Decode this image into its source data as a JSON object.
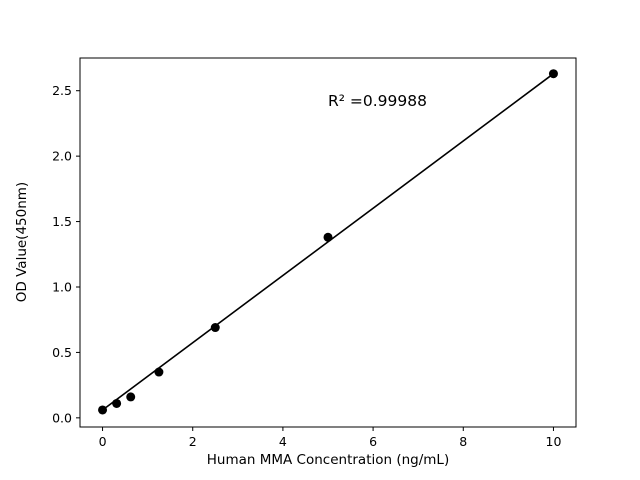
{
  "chart_data": {
    "type": "scatter",
    "title": "",
    "xlabel": "Human MMA Concentration (ng/mL)",
    "ylabel": "OD Value(450nm)",
    "annotation": "R² =0.99988",
    "x": [
      0,
      0.3125,
      0.625,
      1.25,
      2.5,
      5,
      10
    ],
    "y": [
      0.06,
      0.11,
      0.16,
      0.35,
      0.69,
      1.38,
      2.63
    ],
    "fit_line": {
      "type": "linear",
      "x": [
        0,
        10
      ],
      "y": [
        0.06,
        2.63
      ]
    },
    "xlim": [
      -0.5,
      10.5
    ],
    "ylim": [
      -0.07,
      2.75
    ],
    "xticks": [
      0,
      2,
      4,
      6,
      8,
      10
    ],
    "yticks": [
      0.0,
      0.5,
      1.0,
      1.5,
      2.0,
      2.5
    ],
    "x_tick_decimals": 0,
    "y_tick_decimals": 1,
    "grid": false,
    "legend_position": "none",
    "marker_color": "#000000",
    "line_color": "#000000",
    "background_color": "#ffffff"
  }
}
